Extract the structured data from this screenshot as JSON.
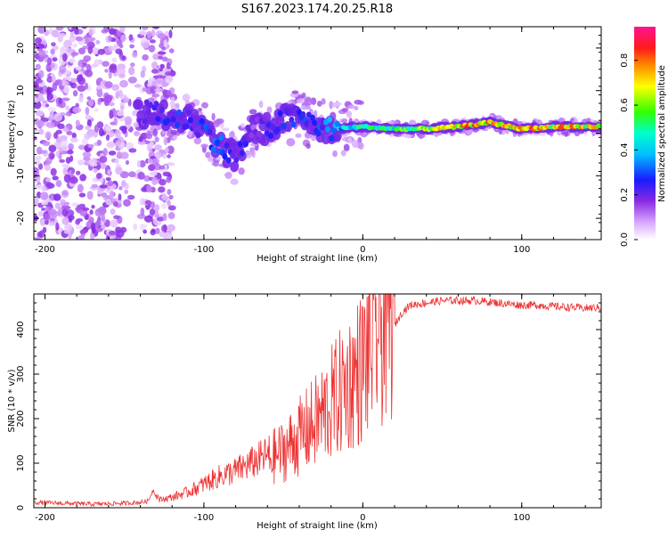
{
  "figure_title": "S167.2023.174.20.25.R18",
  "chart_data": [
    {
      "type": "heatmap",
      "title": "S167.2023.174.20.25.R18",
      "xlabel": "Height of straight line (km)",
      "ylabel": "Frequency (Hz)",
      "xlim": [
        -207,
        150
      ],
      "ylim": [
        -25,
        25
      ],
      "x_ticks": [
        -200,
        -100,
        0,
        100
      ],
      "y_ticks": [
        -20,
        -10,
        0,
        10,
        20
      ],
      "colorbar": {
        "label": "Normalized spectral amplitude",
        "range": [
          0.0,
          0.95
        ],
        "ticks": [
          0.0,
          0.2,
          0.4,
          0.6,
          0.8
        ],
        "colormap": [
          "#ffffff",
          "#8a2be2",
          "#0000ff",
          "#00ffff",
          "#00ff00",
          "#ffff00",
          "#ff0000",
          "#ff1493"
        ]
      },
      "ridge": {
        "description_points_x": [
          -140,
          -120,
          -110,
          -100,
          -90,
          -80,
          -70,
          -60,
          -50,
          -40,
          -30,
          -20,
          0,
          20,
          40,
          60,
          80,
          100,
          120,
          150
        ],
        "frequency_hz": [
          5,
          4,
          3,
          1,
          -3,
          -6,
          1,
          1,
          3,
          4,
          2,
          1,
          1.5,
          1,
          1,
          1.5,
          2.5,
          1,
          1.5,
          1.5
        ],
        "peak_amplitude": [
          0.25,
          0.3,
          0.3,
          0.3,
          0.35,
          0.3,
          0.2,
          0.25,
          0.3,
          0.3,
          0.3,
          0.4,
          0.6,
          0.6,
          0.65,
          0.85,
          0.85,
          0.85,
          0.8,
          0.8
        ]
      }
    },
    {
      "type": "line",
      "xlabel": "Height of straight line (km)",
      "ylabel": "SNR (10 * v/v)",
      "xlim": [
        -207,
        150
      ],
      "ylim": [
        0,
        480
      ],
      "x_ticks": [
        -200,
        -100,
        0,
        100
      ],
      "y_ticks": [
        0,
        100,
        200,
        300,
        400
      ],
      "series": [
        {
          "name": "SNR",
          "color": "#ee3333",
          "x": [
            -207,
            -190,
            -170,
            -150,
            -140,
            -135,
            -132,
            -128,
            -120,
            -110,
            -100,
            -90,
            -80,
            -70,
            -60,
            -50,
            -40,
            -30,
            -20,
            -10,
            0,
            5,
            10,
            15,
            20,
            25,
            30,
            40,
            50,
            60,
            70,
            80,
            90,
            100,
            110,
            120,
            130,
            140,
            150
          ],
          "y": [
            12,
            10,
            8,
            10,
            12,
            15,
            40,
            15,
            20,
            30,
            45,
            60,
            70,
            85,
            100,
            120,
            150,
            180,
            220,
            260,
            300,
            340,
            370,
            400,
            410,
            440,
            455,
            460,
            465,
            465,
            465,
            462,
            458,
            455,
            455,
            452,
            450,
            448,
            450
          ]
        }
      ]
    }
  ]
}
